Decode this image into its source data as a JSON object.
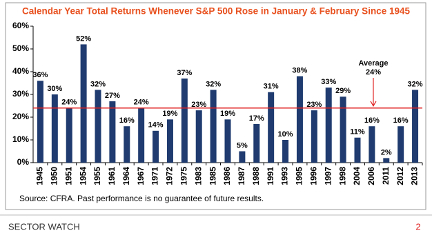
{
  "chart_data": {
    "type": "bar",
    "title": "Calendar Year Total Returns Whenever S&P 500 Rose in January & February Since 1945",
    "categories": [
      "1945",
      "1950",
      "1951",
      "1954",
      "1955",
      "1961",
      "1964",
      "1967",
      "1971",
      "1972",
      "1975",
      "1983",
      "1985",
      "1986",
      "1987",
      "1988",
      "1991",
      "1993",
      "1995",
      "1996",
      "1997",
      "1998",
      "2004",
      "2006",
      "2011",
      "2012",
      "2013"
    ],
    "values": [
      36,
      30,
      24,
      52,
      32,
      27,
      16,
      24,
      14,
      19,
      37,
      23,
      32,
      19,
      5,
      17,
      31,
      10,
      38,
      23,
      33,
      29,
      11,
      16,
      2,
      16,
      32
    ],
    "value_labels": [
      "36%",
      "30%",
      "24%",
      "52%",
      "32%",
      "27%",
      "16%",
      "24%",
      "14%",
      "19%",
      "37%",
      "23%",
      "32%",
      "19%",
      "5%",
      "17%",
      "31%",
      "10%",
      "38%",
      "23%",
      "33%",
      "29%",
      "11%",
      "16%",
      "2%",
      "16%",
      "32%"
    ],
    "color": "#1f3b6f",
    "ylim": [
      0,
      60
    ],
    "yticks": [
      {
        "value": 0,
        "label": "0%"
      },
      {
        "value": 10,
        "label": "10%"
      },
      {
        "value": 20,
        "label": "20%"
      },
      {
        "value": 30,
        "label": "30%"
      },
      {
        "value": 40,
        "label": "40%"
      },
      {
        "value": 50,
        "label": "50%"
      },
      {
        "value": 60,
        "label": "60%"
      }
    ],
    "average": 24,
    "average_title": "Average",
    "average_label": "24%",
    "average_color": "#e02020",
    "source": "Source: CFRA. Past performance is no guarantee of future results."
  },
  "footer": {
    "left": "SECTOR WATCH",
    "page": "2"
  }
}
